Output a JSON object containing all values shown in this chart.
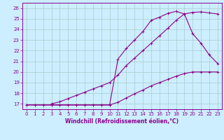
{
  "line1_x": [
    0,
    1,
    2,
    3,
    4,
    5,
    6,
    7,
    8,
    9,
    10,
    11,
    12,
    13,
    14,
    15,
    16,
    17,
    18,
    19,
    20,
    21,
    22,
    23
  ],
  "line1_y": [
    16.9,
    16.9,
    16.9,
    16.9,
    16.9,
    16.9,
    16.9,
    16.9,
    16.9,
    16.9,
    16.9,
    17.15,
    17.55,
    17.95,
    18.3,
    18.7,
    19.0,
    19.3,
    19.6,
    19.85,
    20.0,
    20.0,
    20.0,
    20.0
  ],
  "line2_x": [
    3,
    4,
    5,
    6,
    7,
    8,
    9,
    10,
    11,
    12,
    13,
    14,
    15,
    16,
    17,
    18,
    19,
    20,
    21,
    22,
    23
  ],
  "line2_y": [
    17.0,
    17.2,
    17.5,
    17.8,
    18.1,
    18.4,
    18.7,
    19.0,
    19.7,
    20.6,
    21.3,
    22.0,
    22.7,
    23.4,
    24.1,
    24.85,
    25.45,
    25.6,
    25.65,
    25.55,
    25.45
  ],
  "line3_x": [
    0,
    1,
    2,
    3,
    4,
    5,
    6,
    7,
    8,
    9,
    10,
    11,
    12,
    13,
    14,
    15,
    16,
    17,
    18,
    19,
    20,
    21,
    22,
    23
  ],
  "line3_y": [
    16.9,
    16.9,
    16.9,
    16.9,
    16.9,
    16.9,
    16.9,
    16.9,
    16.9,
    16.9,
    16.9,
    21.2,
    22.2,
    23.0,
    23.8,
    24.85,
    25.15,
    25.5,
    25.7,
    25.45,
    23.6,
    22.7,
    21.6,
    20.8
  ],
  "line_color": "#8B008B",
  "bg_color": "#cceeff",
  "grid_color": "#aacccc",
  "xlabel": "Windchill (Refroidissement éolien,°C)",
  "ylim": [
    16.5,
    26.5
  ],
  "xlim": [
    -0.5,
    23.5
  ],
  "yticks": [
    17,
    18,
    19,
    20,
    21,
    22,
    23,
    24,
    25,
    26
  ],
  "xticks": [
    0,
    1,
    2,
    3,
    4,
    5,
    6,
    7,
    8,
    9,
    10,
    11,
    12,
    13,
    14,
    15,
    16,
    17,
    18,
    19,
    20,
    21,
    22,
    23
  ],
  "marker": "+",
  "markersize": 3,
  "linewidth": 0.8,
  "label_fontsize": 5.5,
  "tick_fontsize": 5
}
